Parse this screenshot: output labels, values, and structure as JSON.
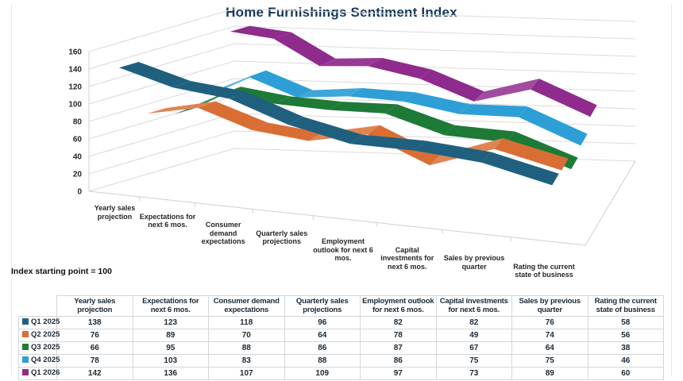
{
  "title": "Home Furnishings Sentiment Index",
  "note": "Index starting point = 100",
  "chart_data": {
    "type": "line",
    "style": "3d-ribbon",
    "title": "Home Furnishings Sentiment Index",
    "categories": [
      "Yearly sales projection",
      "Expectations for next 6 mos.",
      "Consumer demand expectations",
      "Quarterly sales projections",
      "Employment outlook for next 6 mos.",
      "Capital investments for next 6 mos.",
      "Sales by previous quarter",
      "Rating the current state of business"
    ],
    "series": [
      {
        "name": "Q1 2025",
        "color": "#20607F",
        "values": [
          138,
          123,
          118,
          96,
          82,
          82,
          76,
          58
        ]
      },
      {
        "name": "Q2 2025",
        "color": "#D96E34",
        "values": [
          76,
          89,
          70,
          64,
          78,
          49,
          74,
          56
        ]
      },
      {
        "name": "Q3 2025",
        "color": "#1E7A37",
        "values": [
          66,
          95,
          88,
          86,
          87,
          67,
          64,
          38
        ]
      },
      {
        "name": "Q4 2025",
        "color": "#2E9FD6",
        "values": [
          78,
          103,
          83,
          88,
          86,
          75,
          75,
          46
        ]
      },
      {
        "name": "Q1 2026",
        "color": "#8F2B8D",
        "values": [
          142,
          136,
          107,
          109,
          97,
          73,
          89,
          60
        ]
      }
    ],
    "ylim": [
      0,
      160
    ],
    "ytick_step": 20,
    "grid": true,
    "legend_position": "table-left-column",
    "annotation": "Index starting point = 100"
  },
  "table": {
    "corner_label": "",
    "columns": [
      "Yearly sales projection",
      "Expectations for next 6 mos.",
      "Consumer demand expectations",
      "Quarterly sales projections",
      "Employment outlook for next 6 mos.",
      "Capital investments for next 6 mos.",
      "Sales by previous quarter",
      "Rating the current state of business"
    ],
    "rows": [
      {
        "label": "Q1 2025",
        "swatch_color": "#20607F",
        "values": [
          138,
          123,
          118,
          96,
          82,
          82,
          76,
          58
        ]
      },
      {
        "label": "Q2 2025",
        "swatch_color": "#D96E34",
        "values": [
          76,
          89,
          70,
          64,
          78,
          49,
          74,
          56
        ]
      },
      {
        "label": "Q3 2025",
        "swatch_color": "#1E7A37",
        "values": [
          66,
          95,
          88,
          86,
          87,
          67,
          64,
          38
        ]
      },
      {
        "label": "Q4 2025",
        "swatch_color": "#2E9FD6",
        "values": [
          78,
          103,
          83,
          88,
          86,
          75,
          75,
          46
        ]
      },
      {
        "label": "Q1 2026",
        "swatch_color": "#8F2B8D",
        "values": [
          142,
          136,
          107,
          109,
          97,
          73,
          89,
          60
        ]
      }
    ]
  },
  "colors": {
    "title_text": "#17375D",
    "axis_text": "#262626",
    "gridline": "#DADADA",
    "table_border": "#D3D6DA",
    "table_text": "#1B2A38",
    "background": "#FFFFFF"
  }
}
